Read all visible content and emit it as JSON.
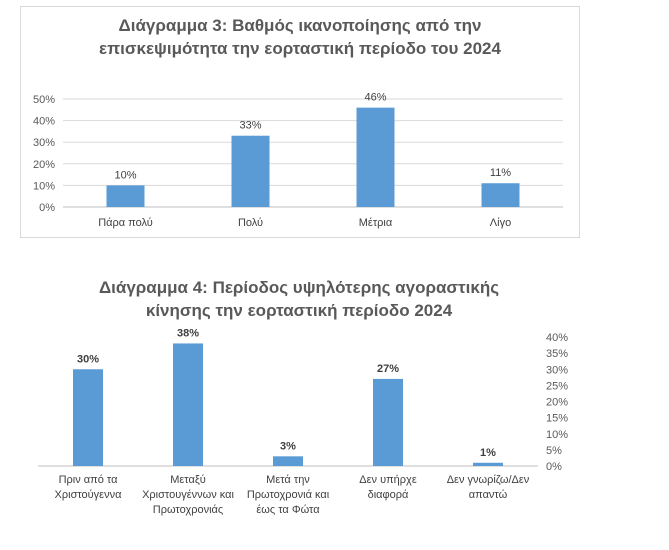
{
  "chart_data": [
    {
      "type": "bar",
      "title_line1": "Διάγραμμα 3: Βαθμός ικανοποίησης από την",
      "title_line2": "επισκεψιμότητα την εορταστική περίοδο του 2024",
      "categories": [
        "Πάρα πολύ",
        "Πολύ",
        "Μέτρια",
        "Λίγο"
      ],
      "values": [
        10,
        33,
        46,
        11
      ],
      "value_labels": [
        "10%",
        "33%",
        "46%",
        "11%"
      ],
      "yticks": [
        0,
        10,
        20,
        30,
        40,
        50
      ],
      "ytick_labels": [
        "0%",
        "10%",
        "20%",
        "30%",
        "40%",
        "50%"
      ],
      "ylim": [
        0,
        50
      ],
      "grid": true,
      "axis_side": "left",
      "bar_color": "#5b9bd5"
    },
    {
      "type": "bar",
      "title_line1": "Διάγραμμα 4: Περίοδος υψηλότερης αγοραστικής",
      "title_line2": "κίνησης την εορταστική περίοδο 2024",
      "categories": [
        [
          "Πριν από τα",
          "Χριστούγεννα"
        ],
        [
          "Μεταξύ",
          "Χριστουγέννων και",
          "Πρωτοχρονιάς"
        ],
        [
          "Μετά την",
          "Πρωτοχρονιά και",
          "έως τα Φώτα"
        ],
        [
          "Δεν υπήρχε",
          "διαφορά"
        ],
        [
          "Δεν γνωρίζω/Δεν",
          "απαντώ"
        ]
      ],
      "values": [
        30,
        38,
        3,
        27,
        1
      ],
      "value_labels": [
        "30%",
        "38%",
        "3%",
        "27%",
        "1%"
      ],
      "yticks": [
        0,
        5,
        10,
        15,
        20,
        25,
        30,
        35,
        40
      ],
      "ytick_labels": [
        "0%",
        "5%",
        "10%",
        "15%",
        "20%",
        "25%",
        "30%",
        "35%",
        "40%"
      ],
      "ylim": [
        0,
        40
      ],
      "grid": false,
      "axis_side": "right",
      "bar_color": "#5b9bd5"
    }
  ]
}
